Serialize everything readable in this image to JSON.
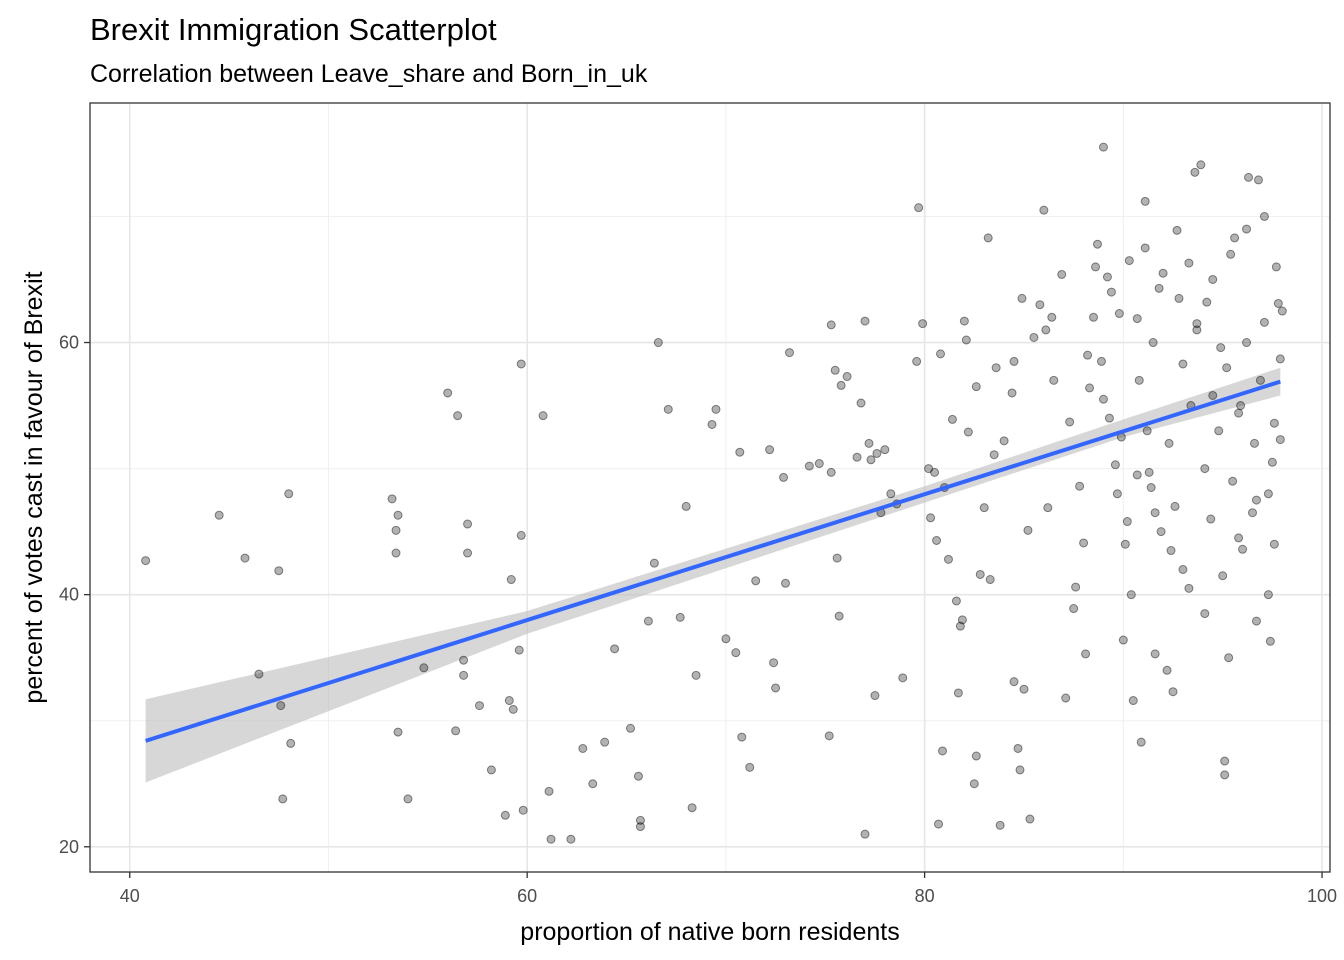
{
  "chart_data": {
    "type": "scatter",
    "title": "Brexit Immigration Scatterplot",
    "subtitle": "Correlation between Leave_share and Born_in_uk",
    "xlabel": "proportion of native born residents",
    "ylabel": "percent of votes cast in favour of Brexit",
    "xlim": [
      38.0,
      100.4
    ],
    "ylim": [
      18.0,
      79.0
    ],
    "xticks": [
      40,
      60,
      80,
      100
    ],
    "yticks": [
      20,
      40,
      60
    ],
    "grid": true,
    "legend": "none",
    "point_color": "#000000",
    "point_alpha": 0.3,
    "fit": {
      "method": "lm",
      "color": "#3366FF",
      "band_color": "#bdbdbd",
      "x_range": [
        40.8,
        97.9
      ],
      "line": [
        [
          40.8,
          28.4
        ],
        [
          97.9,
          56.9
        ]
      ],
      "band_lower": [
        [
          40.8,
          25.1
        ],
        [
          60.0,
          36.9
        ],
        [
          80.0,
          47.3
        ],
        [
          90.0,
          52.5
        ],
        [
          97.9,
          55.8
        ]
      ],
      "band_upper": [
        [
          40.8,
          31.7
        ],
        [
          60.0,
          38.7
        ],
        [
          80.0,
          48.6
        ],
        [
          90.0,
          53.9
        ],
        [
          97.9,
          58.0
        ]
      ]
    },
    "points": [
      [
        40.8,
        42.7
      ],
      [
        44.5,
        46.3
      ],
      [
        45.8,
        42.9
      ],
      [
        46.5,
        33.7
      ],
      [
        47.5,
        41.9
      ],
      [
        47.6,
        31.2
      ],
      [
        47.7,
        23.8
      ],
      [
        48.0,
        48.0
      ],
      [
        48.1,
        28.2
      ],
      [
        53.2,
        47.6
      ],
      [
        53.4,
        45.1
      ],
      [
        53.5,
        46.3
      ],
      [
        53.4,
        43.3
      ],
      [
        53.5,
        29.1
      ],
      [
        54.0,
        23.8
      ],
      [
        54.8,
        34.2
      ],
      [
        56.0,
        56.0
      ],
      [
        56.5,
        54.2
      ],
      [
        56.4,
        29.2
      ],
      [
        56.8,
        34.8
      ],
      [
        56.8,
        33.6
      ],
      [
        57.0,
        45.6
      ],
      [
        57.0,
        43.3
      ],
      [
        57.6,
        31.2
      ],
      [
        58.2,
        26.1
      ],
      [
        58.9,
        22.5
      ],
      [
        59.1,
        31.6
      ],
      [
        59.2,
        41.2
      ],
      [
        59.3,
        30.9
      ],
      [
        59.6,
        35.6
      ],
      [
        59.7,
        44.7
      ],
      [
        59.7,
        58.3
      ],
      [
        59.8,
        22.9
      ],
      [
        60.8,
        54.2
      ],
      [
        61.1,
        24.4
      ],
      [
        61.2,
        20.6
      ],
      [
        62.2,
        20.6
      ],
      [
        62.8,
        27.8
      ],
      [
        63.3,
        25.0
      ],
      [
        63.9,
        28.3
      ],
      [
        64.4,
        35.7
      ],
      [
        65.2,
        29.4
      ],
      [
        65.6,
        25.6
      ],
      [
        65.7,
        21.6
      ],
      [
        65.7,
        22.1
      ],
      [
        66.1,
        37.9
      ],
      [
        66.4,
        42.5
      ],
      [
        66.6,
        60.0
      ],
      [
        67.1,
        54.7
      ],
      [
        67.7,
        38.2
      ],
      [
        68.0,
        47.0
      ],
      [
        68.3,
        23.1
      ],
      [
        68.5,
        33.6
      ],
      [
        69.3,
        53.5
      ],
      [
        69.5,
        54.7
      ],
      [
        70.0,
        36.5
      ],
      [
        70.5,
        35.4
      ],
      [
        70.7,
        51.3
      ],
      [
        70.8,
        28.7
      ],
      [
        71.2,
        26.3
      ],
      [
        71.5,
        41.1
      ],
      [
        72.2,
        51.5
      ],
      [
        72.4,
        34.6
      ],
      [
        72.5,
        32.6
      ],
      [
        72.9,
        49.3
      ],
      [
        73.0,
        40.9
      ],
      [
        73.2,
        59.2
      ],
      [
        74.2,
        50.2
      ],
      [
        74.7,
        50.4
      ],
      [
        75.2,
        28.8
      ],
      [
        75.3,
        61.4
      ],
      [
        75.3,
        49.7
      ],
      [
        75.5,
        57.8
      ],
      [
        75.6,
        42.9
      ],
      [
        75.7,
        38.3
      ],
      [
        75.8,
        56.6
      ],
      [
        76.1,
        57.3
      ],
      [
        76.6,
        50.9
      ],
      [
        76.8,
        55.2
      ],
      [
        77.0,
        61.7
      ],
      [
        77.0,
        21.0
      ],
      [
        77.2,
        52.0
      ],
      [
        77.3,
        50.7
      ],
      [
        77.5,
        32.0
      ],
      [
        77.6,
        51.2
      ],
      [
        77.8,
        46.5
      ],
      [
        78.0,
        51.5
      ],
      [
        78.3,
        48.0
      ],
      [
        78.6,
        47.2
      ],
      [
        78.9,
        33.4
      ],
      [
        79.6,
        58.5
      ],
      [
        79.7,
        70.7
      ],
      [
        79.9,
        61.5
      ],
      [
        80.2,
        50.0
      ],
      [
        80.3,
        46.1
      ],
      [
        80.5,
        49.7
      ],
      [
        80.6,
        44.3
      ],
      [
        80.7,
        21.8
      ],
      [
        80.8,
        59.1
      ],
      [
        80.9,
        27.6
      ],
      [
        81.0,
        48.5
      ],
      [
        81.2,
        42.8
      ],
      [
        81.4,
        53.9
      ],
      [
        81.6,
        39.5
      ],
      [
        81.7,
        32.2
      ],
      [
        81.8,
        37.5
      ],
      [
        81.9,
        38.0
      ],
      [
        82.0,
        61.7
      ],
      [
        82.1,
        60.2
      ],
      [
        82.2,
        52.9
      ],
      [
        82.5,
        25.0
      ],
      [
        82.6,
        27.2
      ],
      [
        82.6,
        56.5
      ],
      [
        82.8,
        41.6
      ],
      [
        83.0,
        46.9
      ],
      [
        83.2,
        68.3
      ],
      [
        83.3,
        41.2
      ],
      [
        83.5,
        51.1
      ],
      [
        83.6,
        58.0
      ],
      [
        83.8,
        21.7
      ],
      [
        84.0,
        52.2
      ],
      [
        84.4,
        56.0
      ],
      [
        84.5,
        58.5
      ],
      [
        84.5,
        33.1
      ],
      [
        84.7,
        27.8
      ],
      [
        84.8,
        26.1
      ],
      [
        84.9,
        63.5
      ],
      [
        85.0,
        32.5
      ],
      [
        85.2,
        45.1
      ],
      [
        85.3,
        22.2
      ],
      [
        85.5,
        60.4
      ],
      [
        85.8,
        63.0
      ],
      [
        86.0,
        70.5
      ],
      [
        86.1,
        61.0
      ],
      [
        86.2,
        46.9
      ],
      [
        86.4,
        62.0
      ],
      [
        86.5,
        57.0
      ],
      [
        86.9,
        65.4
      ],
      [
        87.1,
        31.8
      ],
      [
        87.3,
        53.7
      ],
      [
        87.5,
        38.9
      ],
      [
        87.6,
        40.6
      ],
      [
        87.8,
        48.6
      ],
      [
        88.0,
        44.1
      ],
      [
        88.1,
        35.3
      ],
      [
        88.3,
        56.4
      ],
      [
        88.7,
        67.8
      ],
      [
        89.0,
        75.5
      ],
      [
        89.2,
        65.2
      ],
      [
        89.6,
        50.3
      ],
      [
        89.8,
        62.3
      ],
      [
        90.0,
        36.4
      ],
      [
        90.2,
        45.8
      ],
      [
        90.5,
        31.6
      ],
      [
        90.7,
        61.9
      ],
      [
        90.9,
        28.3
      ],
      [
        91.1,
        71.2
      ],
      [
        91.3,
        49.7
      ],
      [
        91.4,
        48.5
      ],
      [
        91.6,
        35.3
      ],
      [
        91.8,
        64.3
      ],
      [
        92.2,
        34.0
      ],
      [
        92.5,
        32.3
      ],
      [
        92.7,
        68.9
      ],
      [
        93.0,
        58.3
      ],
      [
        93.3,
        66.3
      ],
      [
        93.6,
        73.5
      ],
      [
        93.9,
        74.1
      ],
      [
        94.2,
        63.2
      ],
      [
        94.5,
        55.8
      ],
      [
        94.9,
        59.6
      ],
      [
        95.1,
        26.8
      ],
      [
        95.1,
        25.7
      ],
      [
        95.3,
        35.0
      ],
      [
        95.6,
        68.3
      ],
      [
        95.8,
        54.4
      ],
      [
        96.0,
        43.6
      ],
      [
        96.3,
        73.1
      ],
      [
        96.5,
        46.5
      ],
      [
        96.7,
        37.9
      ],
      [
        96.8,
        72.9
      ],
      [
        97.1,
        61.6
      ],
      [
        97.3,
        40.0
      ],
      [
        97.4,
        36.3
      ],
      [
        97.6,
        53.6
      ],
      [
        97.8,
        63.1
      ],
      [
        97.9,
        52.3
      ],
      [
        98.0,
        62.5
      ],
      [
        97.9,
        58.7
      ],
      [
        88.5,
        62.0
      ],
      [
        88.9,
        58.5
      ],
      [
        89.3,
        54.0
      ],
      [
        89.7,
        48.0
      ],
      [
        90.1,
        44.0
      ],
      [
        90.4,
        40.0
      ],
      [
        90.8,
        57.0
      ],
      [
        91.2,
        53.0
      ],
      [
        91.5,
        60.0
      ],
      [
        91.9,
        45.0
      ],
      [
        92.3,
        52.0
      ],
      [
        92.6,
        47.0
      ],
      [
        93.0,
        42.0
      ],
      [
        93.4,
        55.0
      ],
      [
        93.7,
        61.0
      ],
      [
        94.1,
        50.0
      ],
      [
        94.4,
        46.0
      ],
      [
        94.8,
        53.0
      ],
      [
        95.2,
        58.0
      ],
      [
        95.5,
        49.0
      ],
      [
        95.9,
        55.0
      ],
      [
        96.2,
        60.0
      ],
      [
        96.6,
        52.0
      ],
      [
        96.9,
        57.0
      ],
      [
        97.3,
        48.0
      ],
      [
        97.6,
        44.0
      ],
      [
        88.2,
        59.0
      ],
      [
        89.0,
        55.5
      ],
      [
        89.9,
        52.5
      ],
      [
        90.7,
        49.5
      ],
      [
        91.6,
        46.5
      ],
      [
        92.4,
        43.5
      ],
      [
        93.3,
        40.5
      ],
      [
        94.1,
        38.5
      ],
      [
        95.0,
        41.5
      ],
      [
        95.8,
        44.5
      ],
      [
        96.7,
        47.5
      ],
      [
        97.5,
        50.5
      ],
      [
        88.6,
        66.0
      ],
      [
        89.4,
        64.0
      ],
      [
        90.3,
        66.5
      ],
      [
        91.1,
        67.5
      ],
      [
        92.0,
        65.5
      ],
      [
        92.8,
        63.5
      ],
      [
        93.7,
        61.5
      ],
      [
        94.5,
        65.0
      ],
      [
        95.4,
        67.0
      ],
      [
        96.2,
        69.0
      ],
      [
        97.1,
        70.0
      ],
      [
        97.7,
        66.0
      ]
    ]
  }
}
